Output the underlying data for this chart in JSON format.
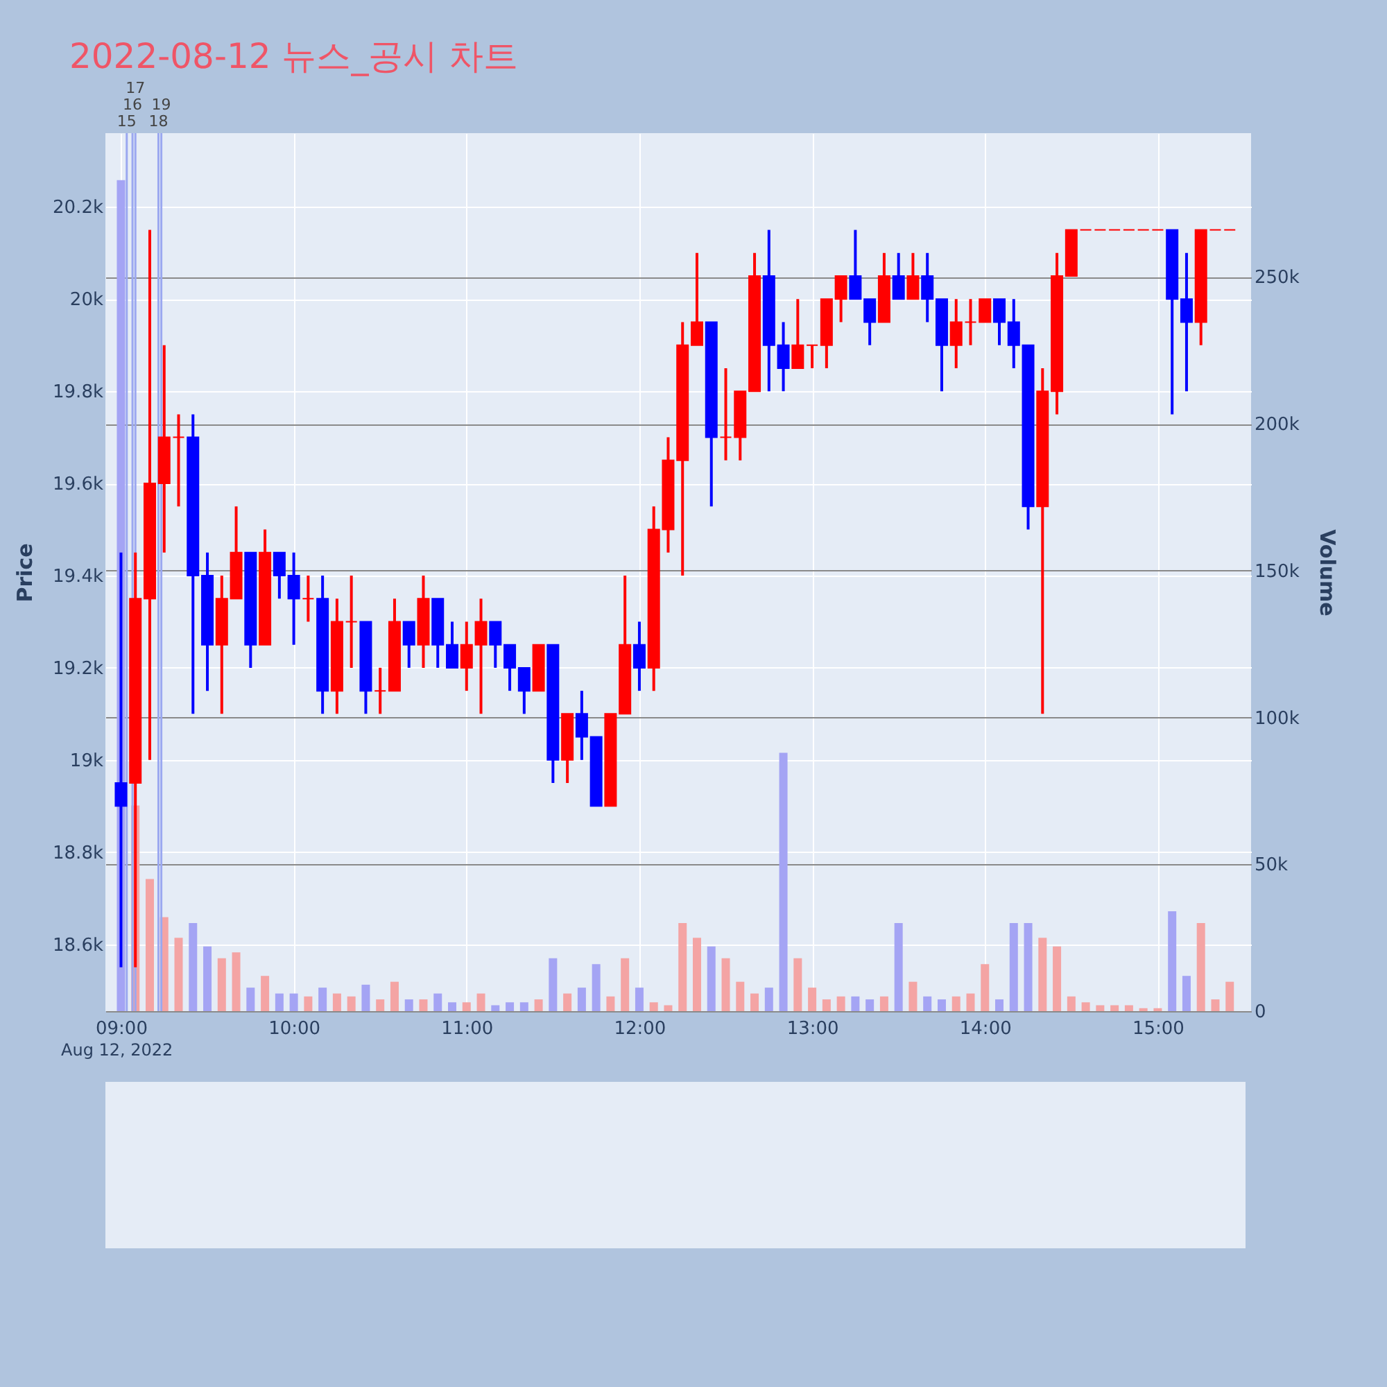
{
  "chart_data": {
    "type": "candlestick",
    "title": "2022-08-12 뉴스_공시 차트",
    "ylabel": "Price",
    "y2label": "Volume",
    "annotations": [
      "Aug 12, 2022"
    ],
    "xlim": [
      "2022-08-12T08:57",
      "2022-08-12T15:30"
    ],
    "xticks": [
      {
        "value": "2022-08-12T09:00",
        "label": "09:00"
      },
      {
        "value": "2022-08-12T10:00",
        "label": "10:00"
      },
      {
        "value": "2022-08-12T11:00",
        "label": "11:00"
      },
      {
        "value": "2022-08-12T12:00",
        "label": "12:00"
      },
      {
        "value": "2022-08-12T13:00",
        "label": "13:00"
      },
      {
        "value": "2022-08-12T14:00",
        "label": "14:00"
      },
      {
        "value": "2022-08-12T15:00",
        "label": "15:00"
      }
    ],
    "ylim": [
      18455,
      20360
    ],
    "yticks": [
      {
        "value": 18600,
        "label": "18.6k"
      },
      {
        "value": 18800,
        "label": "18.8k"
      },
      {
        "value": 19000,
        "label": "19k"
      },
      {
        "value": 19200,
        "label": "19.2k"
      },
      {
        "value": 19400,
        "label": "19.4k"
      },
      {
        "value": 19600,
        "label": "19.6k"
      },
      {
        "value": 19800,
        "label": "19.8k"
      },
      {
        "value": 20000,
        "label": "20k"
      },
      {
        "value": 20200,
        "label": "20.2k"
      }
    ],
    "y2lim": [
      0,
      299000
    ],
    "y2ticks": [
      0,
      {
        "value": 50000,
        "label": "50k"
      },
      {
        "value": 100000,
        "label": "100k"
      },
      {
        "value": 150000,
        "label": "150k"
      },
      {
        "value": 200000,
        "label": "200k"
      },
      {
        "value": 250000,
        "label": "250k"
      }
    ],
    "grid": true,
    "ref_lines": [
      {
        "axis": "x",
        "value": "2022-08-12T09:02",
        "label": "15",
        "color": "#9ba8f0"
      },
      {
        "axis": "x",
        "value": "2022-08-12T09:04",
        "label": "16",
        "color": "#9ba8f0"
      },
      {
        "axis": "x",
        "value": "2022-08-12T09:05",
        "label": "17",
        "color": "#9ba8f0"
      },
      {
        "axis": "x",
        "value": "2022-08-12T09:13",
        "label": "18",
        "color": "#9ba8f0"
      },
      {
        "axis": "x",
        "value": "2022-08-12T09:14",
        "label": "19",
        "color": "#9ba8f0"
      }
    ],
    "x": [
      "2022-08-12T09:00",
      "2022-08-12T09:05",
      "2022-08-12T09:10",
      "2022-08-12T09:15",
      "2022-08-12T09:20",
      "2022-08-12T09:25",
      "2022-08-12T09:30",
      "2022-08-12T09:35",
      "2022-08-12T09:40",
      "2022-08-12T09:45",
      "2022-08-12T09:50",
      "2022-08-12T09:55",
      "2022-08-12T10:00",
      "2022-08-12T10:05",
      "2022-08-12T10:10",
      "2022-08-12T10:15",
      "2022-08-12T10:20",
      "2022-08-12T10:25",
      "2022-08-12T10:30",
      "2022-08-12T10:35",
      "2022-08-12T10:40",
      "2022-08-12T10:45",
      "2022-08-12T10:50",
      "2022-08-12T10:55",
      "2022-08-12T11:00",
      "2022-08-12T11:05",
      "2022-08-12T11:10",
      "2022-08-12T11:15",
      "2022-08-12T11:20",
      "2022-08-12T11:25",
      "2022-08-12T11:30",
      "2022-08-12T11:35",
      "2022-08-12T11:40",
      "2022-08-12T11:45",
      "2022-08-12T11:50",
      "2022-08-12T11:55",
      "2022-08-12T12:00",
      "2022-08-12T12:05",
      "2022-08-12T12:10",
      "2022-08-12T12:15",
      "2022-08-12T12:20",
      "2022-08-12T12:25",
      "2022-08-12T12:30",
      "2022-08-12T12:35",
      "2022-08-12T12:40",
      "2022-08-12T12:45",
      "2022-08-12T12:50",
      "2022-08-12T12:55",
      "2022-08-12T13:00",
      "2022-08-12T13:05",
      "2022-08-12T13:10",
      "2022-08-12T13:15",
      "2022-08-12T13:20",
      "2022-08-12T13:25",
      "2022-08-12T13:30",
      "2022-08-12T13:35",
      "2022-08-12T13:40",
      "2022-08-12T13:45",
      "2022-08-12T13:50",
      "2022-08-12T13:55",
      "2022-08-12T14:00",
      "2022-08-12T14:05",
      "2022-08-12T14:10",
      "2022-08-12T14:15",
      "2022-08-12T14:20",
      "2022-08-12T14:25",
      "2022-08-12T14:30",
      "2022-08-12T14:35",
      "2022-08-12T14:40",
      "2022-08-12T14:45",
      "2022-08-12T14:50",
      "2022-08-12T14:55",
      "2022-08-12T15:00",
      "2022-08-12T15:05",
      "2022-08-12T15:10",
      "2022-08-12T15:15",
      "2022-08-12T15:20",
      "2022-08-12T15:25"
    ],
    "series": [
      {
        "type": "bar",
        "axis": "y2",
        "values": [
          283000,
          70000,
          45000,
          32000,
          25000,
          30000,
          22000,
          18000,
          20000,
          8000,
          12000,
          6000,
          6000,
          5000,
          8000,
          6000,
          5000,
          9000,
          4000,
          10000,
          4000,
          4000,
          6000,
          3000,
          3000,
          6000,
          2000,
          3000,
          3000,
          4000,
          18000,
          6000,
          8000,
          16000,
          5000,
          18000,
          8000,
          3000,
          2000,
          30000,
          25000,
          22000,
          18000,
          10000,
          6000,
          8000,
          88000,
          18000,
          8000,
          4000,
          5000,
          5000,
          4000,
          5000,
          30000,
          10000,
          5000,
          4000,
          5000,
          6000,
          16000,
          4000,
          30000,
          30000,
          25000,
          22000,
          5000,
          3000,
          2000,
          2000,
          2000,
          1000,
          1000,
          34000,
          12000,
          30000,
          4000,
          10000
        ],
        "colors": [
          "#a4a4f4",
          "#f4a4a4",
          "#f4a4a4",
          "#f4a4a4",
          "#f4a4a4",
          "#a4a4f4",
          "#a4a4f4",
          "#f4a4a4",
          "#f4a4a4",
          "#a4a4f4",
          "#f4a4a4",
          "#a4a4f4",
          "#a4a4f4",
          "#f4a4a4",
          "#a4a4f4",
          "#f4a4a4",
          "#f4a4a4",
          "#a4a4f4",
          "#f4a4a4",
          "#f4a4a4",
          "#a4a4f4",
          "#f4a4a4",
          "#a4a4f4",
          "#a4a4f4",
          "#f4a4a4",
          "#f4a4a4",
          "#a4a4f4",
          "#a4a4f4",
          "#a4a4f4",
          "#f4a4a4",
          "#a4a4f4",
          "#f4a4a4",
          "#a4a4f4",
          "#a4a4f4",
          "#f4a4a4",
          "#f4a4a4",
          "#a4a4f4",
          "#f4a4a4",
          "#f4a4a4",
          "#f4a4a4",
          "#f4a4a4",
          "#a4a4f4",
          "#f4a4a4",
          "#f4a4a4",
          "#f4a4a4",
          "#a4a4f4",
          "#a4a4f4",
          "#f4a4a4",
          "#f4a4a4",
          "#f4a4a4",
          "#f4a4a4",
          "#a4a4f4",
          "#a4a4f4",
          "#f4a4a4",
          "#a4a4f4",
          "#f4a4a4",
          "#a4a4f4",
          "#a4a4f4",
          "#f4a4a4",
          "#f4a4a4",
          "#f4a4a4",
          "#a4a4f4",
          "#a4a4f4",
          "#a4a4f4",
          "#f4a4a4",
          "#f4a4a4",
          "#f4a4a4",
          "#f4a4a4",
          "#f4a4a4",
          "#f4a4a4",
          "#f4a4a4",
          "#f4a4a4",
          "#f4a4a4",
          "#a4a4f4",
          "#a4a4f4",
          "#f4a4a4",
          "#f4a4a4",
          "#f4a4a4"
        ]
      },
      {
        "ohlc": [
          [
            18950,
            19450,
            18550,
            18900
          ],
          [
            18950,
            19450,
            18550,
            19350
          ],
          [
            19350,
            20150,
            19000,
            19600
          ],
          [
            19600,
            19900,
            19450,
            19700
          ],
          [
            19700,
            19750,
            19550,
            19700
          ],
          [
            19700,
            19750,
            19100,
            19400
          ],
          [
            19400,
            19450,
            19150,
            19250
          ],
          [
            19250,
            19400,
            19100,
            19350
          ],
          [
            19350,
            19550,
            19350,
            19450
          ],
          [
            19450,
            19450,
            19200,
            19250
          ],
          [
            19250,
            19500,
            19250,
            19450
          ],
          [
            19450,
            19450,
            19350,
            19400
          ],
          [
            19400,
            19450,
            19250,
            19350
          ],
          [
            19350,
            19400,
            19300,
            19350
          ],
          [
            19350,
            19400,
            19100,
            19150
          ],
          [
            19150,
            19350,
            19100,
            19300
          ],
          [
            19300,
            19400,
            19200,
            19300
          ],
          [
            19300,
            19300,
            19100,
            19150
          ],
          [
            19150,
            19200,
            19100,
            19150
          ],
          [
            19150,
            19350,
            19150,
            19300
          ],
          [
            19300,
            19300,
            19200,
            19250
          ],
          [
            19250,
            19400,
            19200,
            19350
          ],
          [
            19350,
            19350,
            19200,
            19250
          ],
          [
            19250,
            19300,
            19200,
            19200
          ],
          [
            19200,
            19300,
            19150,
            19250
          ],
          [
            19250,
            19350,
            19100,
            19300
          ],
          [
            19300,
            19300,
            19200,
            19250
          ],
          [
            19250,
            19250,
            19150,
            19200
          ],
          [
            19200,
            19200,
            19100,
            19150
          ],
          [
            19150,
            19250,
            19150,
            19250
          ],
          [
            19250,
            19250,
            18950,
            19000
          ],
          [
            19000,
            19100,
            18950,
            19100
          ],
          [
            19100,
            19150,
            19000,
            19050
          ],
          [
            19050,
            19050,
            18900,
            18900
          ],
          [
            18900,
            19100,
            18900,
            19100
          ],
          [
            19100,
            19400,
            19100,
            19250
          ],
          [
            19250,
            19300,
            19150,
            19200
          ],
          [
            19200,
            19550,
            19150,
            19500
          ],
          [
            19500,
            19700,
            19450,
            19650
          ],
          [
            19650,
            19950,
            19400,
            19900
          ],
          [
            19900,
            20100,
            19900,
            19950
          ],
          [
            19950,
            19950,
            19550,
            19700
          ],
          [
            19700,
            19850,
            19650,
            19700
          ],
          [
            19700,
            19800,
            19650,
            19800
          ],
          [
            19800,
            20100,
            19800,
            20050
          ],
          [
            20050,
            20150,
            19800,
            19900
          ],
          [
            19900,
            19950,
            19800,
            19850
          ],
          [
            19850,
            20000,
            19850,
            19900
          ],
          [
            19900,
            19900,
            19850,
            19900
          ],
          [
            19900,
            20000,
            19850,
            20000
          ],
          [
            20000,
            20050,
            19950,
            20050
          ],
          [
            20050,
            20150,
            20000,
            20000
          ],
          [
            20000,
            20000,
            19900,
            19950
          ],
          [
            19950,
            20100,
            19950,
            20050
          ],
          [
            20050,
            20100,
            20000,
            20000
          ],
          [
            20000,
            20100,
            20000,
            20050
          ],
          [
            20050,
            20100,
            19950,
            20000
          ],
          [
            20000,
            20000,
            19800,
            19900
          ],
          [
            19900,
            20000,
            19850,
            19950
          ],
          [
            19950,
            20000,
            19900,
            19950
          ],
          [
            19950,
            20000,
            19950,
            20000
          ],
          [
            20000,
            20000,
            19900,
            19950
          ],
          [
            19950,
            20000,
            19850,
            19900
          ],
          [
            19900,
            19900,
            19500,
            19550
          ],
          [
            19550,
            19850,
            19100,
            19800
          ],
          [
            19800,
            20100,
            19750,
            20050
          ],
          [
            20050,
            20150,
            20050,
            20150
          ],
          [
            20150,
            20150,
            20150,
            20150
          ],
          [
            20150,
            20150,
            20150,
            20150
          ],
          [
            20150,
            20150,
            20150,
            20150
          ],
          [
            20150,
            20150,
            20150,
            20150
          ],
          [
            20150,
            20150,
            20150,
            20150
          ],
          [
            20150,
            20150,
            20150,
            20150
          ],
          [
            20150,
            20150,
            19750,
            20000
          ],
          [
            20000,
            20100,
            19800,
            19950
          ],
          [
            19950,
            20150,
            19900,
            20150
          ],
          [
            20150,
            20150,
            20150,
            20150
          ],
          [
            20150,
            20150,
            20150,
            20150
          ]
        ],
        "colors": [
          "#0000ff",
          "#ff0000",
          "#ff0000",
          "#ff0000",
          "#ff0000",
          "#0000ff",
          "#0000ff",
          "#ff0000",
          "#ff0000",
          "#0000ff",
          "#ff0000",
          "#0000ff",
          "#0000ff",
          "#ff0000",
          "#0000ff",
          "#ff0000",
          "#ff0000",
          "#0000ff",
          "#ff0000",
          "#ff0000",
          "#0000ff",
          "#ff0000",
          "#0000ff",
          "#0000ff",
          "#ff0000",
          "#ff0000",
          "#0000ff",
          "#0000ff",
          "#0000ff",
          "#ff0000",
          "#0000ff",
          "#ff0000",
          "#0000ff",
          "#0000ff",
          "#ff0000",
          "#ff0000",
          "#0000ff",
          "#ff0000",
          "#ff0000",
          "#ff0000",
          "#ff0000",
          "#0000ff",
          "#ff0000",
          "#ff0000",
          "#ff0000",
          "#0000ff",
          "#0000ff",
          "#ff0000",
          "#ff0000",
          "#ff0000",
          "#ff0000",
          "#0000ff",
          "#0000ff",
          "#ff0000",
          "#0000ff",
          "#ff0000",
          "#0000ff",
          "#0000ff",
          "#ff0000",
          "#ff0000",
          "#ff0000",
          "#0000ff",
          "#0000ff",
          "#0000ff",
          "#ff0000",
          "#ff0000",
          "#ff0000",
          "#ff0000",
          "#ff0000",
          "#ff0000",
          "#ff0000",
          "#ff0000",
          "#ff0000",
          "#0000ff",
          "#0000ff",
          "#ff0000",
          "#ff0000",
          "#ff0000"
        ]
      }
    ]
  }
}
